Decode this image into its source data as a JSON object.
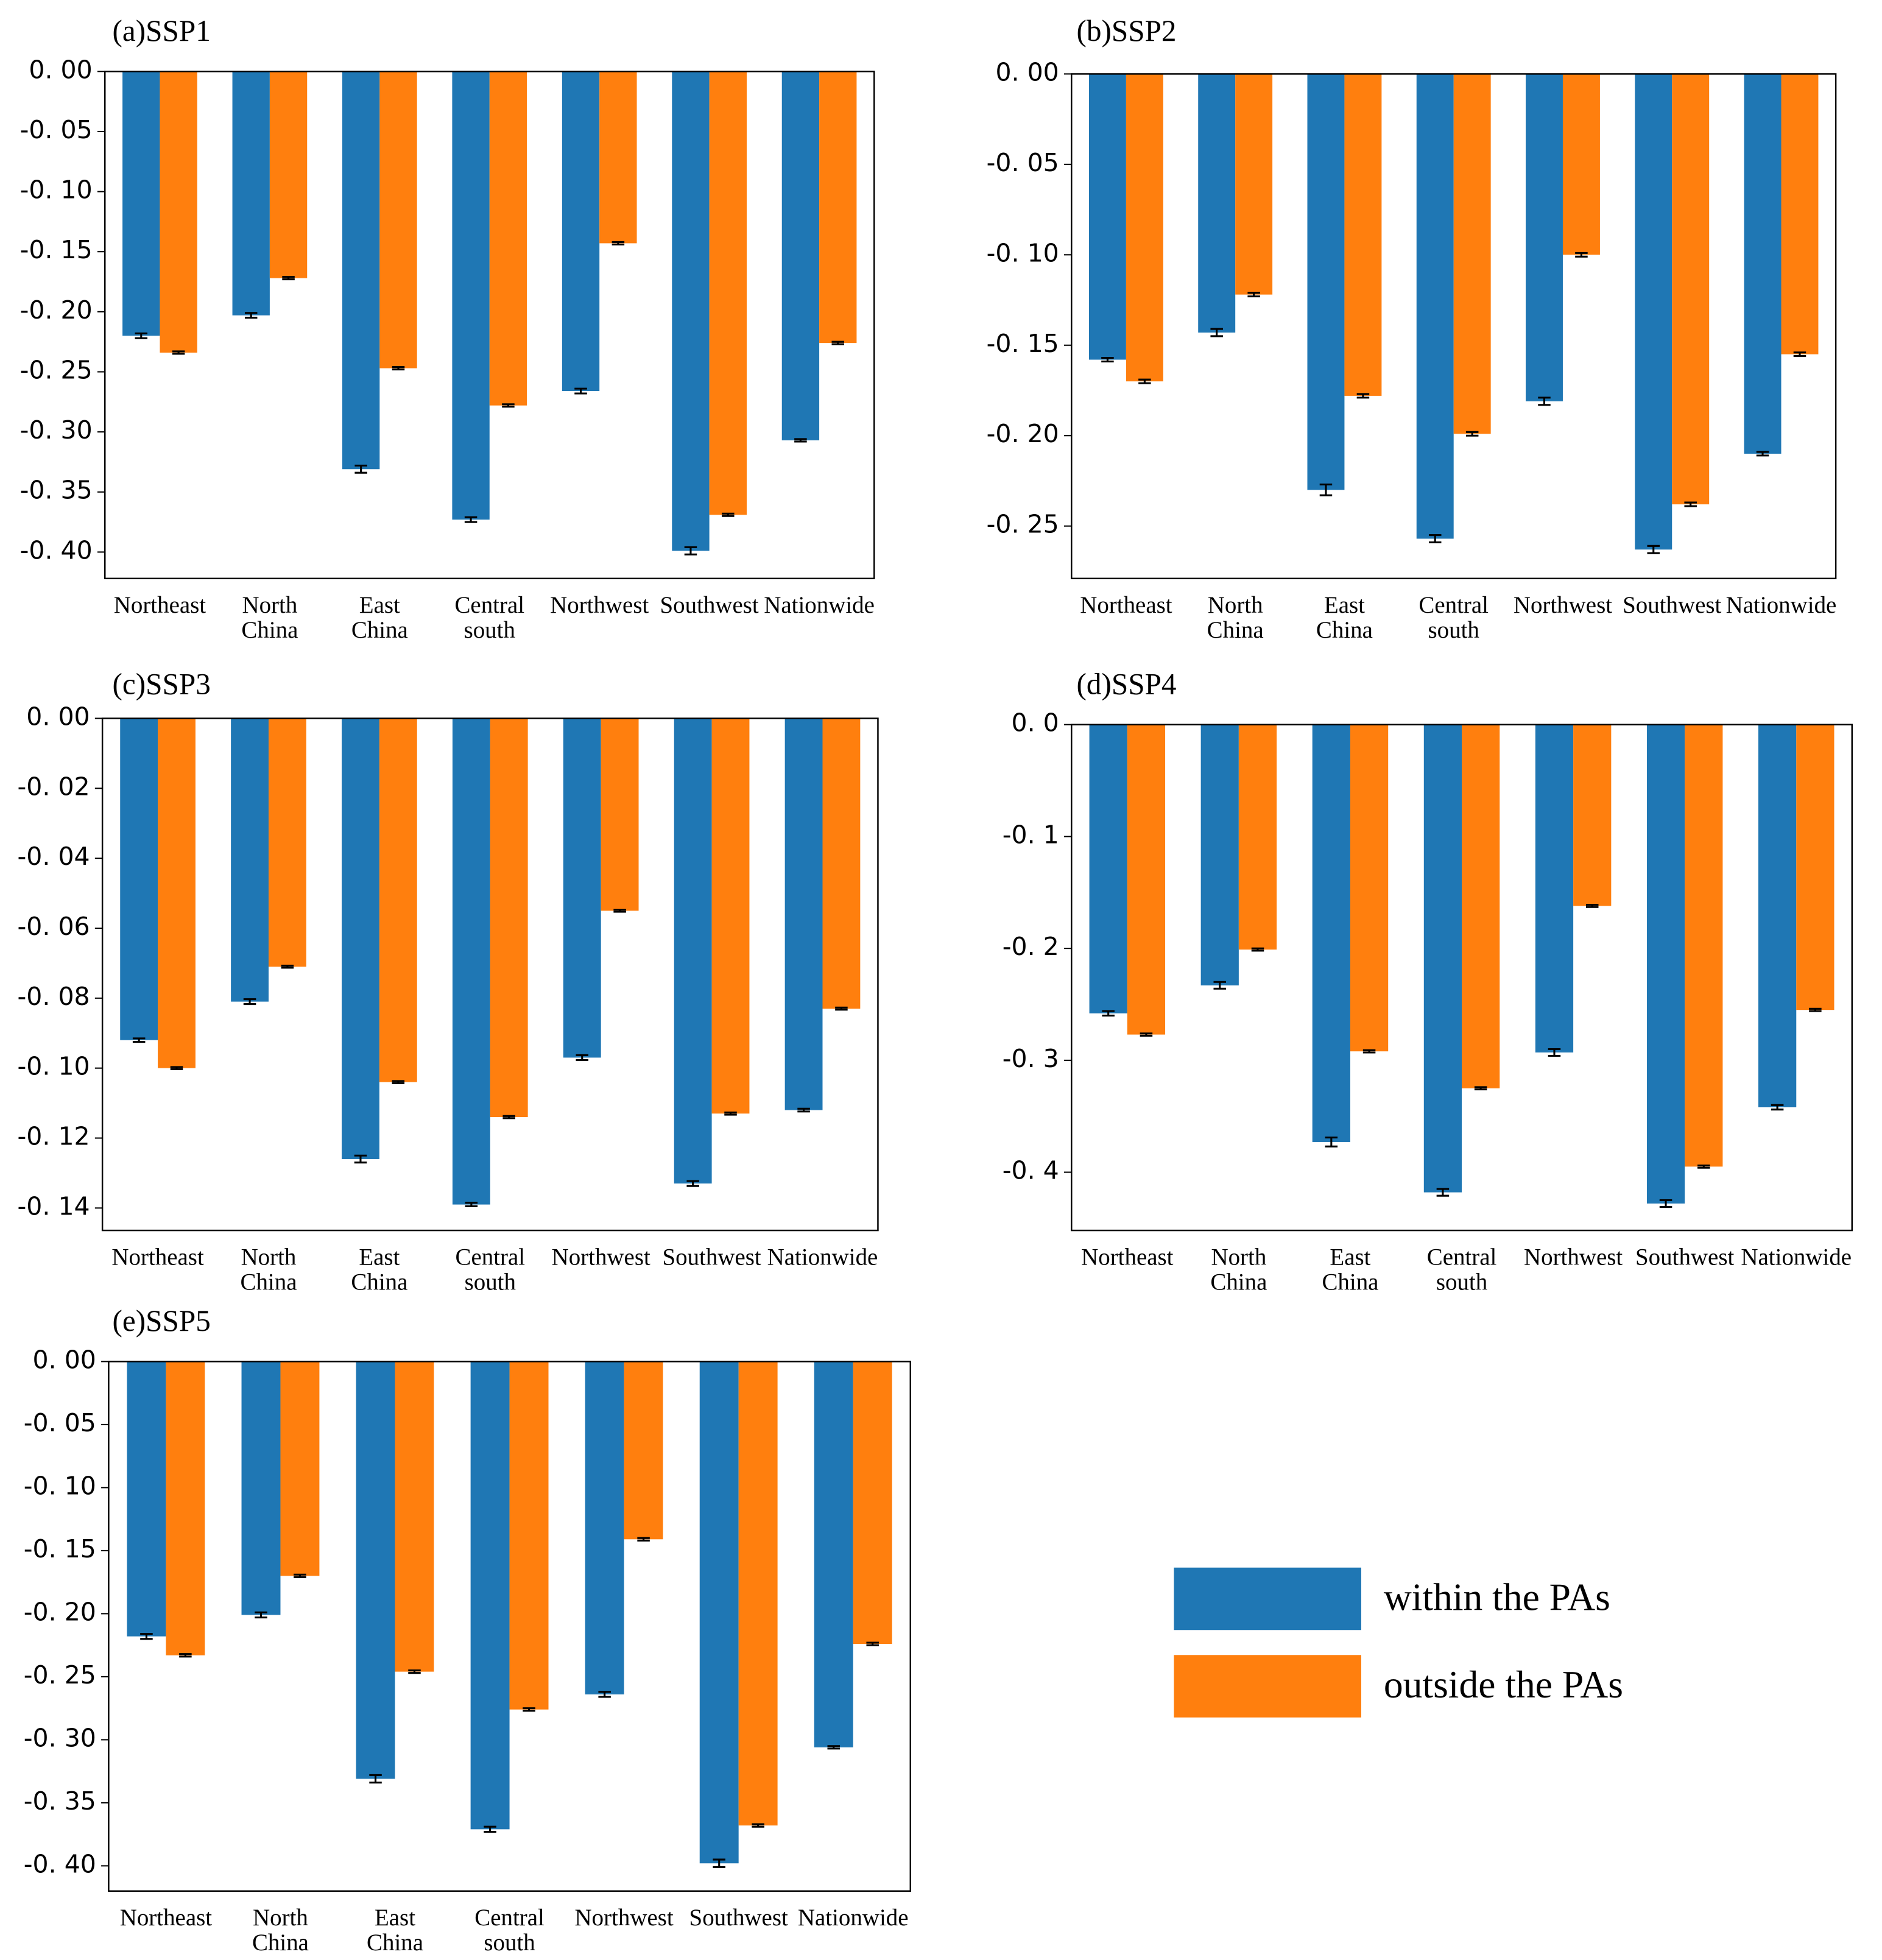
{
  "legend": [
    {
      "name": "within the PAs",
      "color": "#1f77b4"
    },
    {
      "name": "outside the PAs",
      "color": "#ff7f0e"
    }
  ],
  "chart_data": [
    {
      "type": "bar",
      "title": "(a)SSP1",
      "categories": [
        "Northeast",
        "North China",
        "East China",
        "Central south",
        "Northwest",
        "Southwest",
        "Nationwide"
      ],
      "series": [
        {
          "values": [
            -0.22,
            -0.203,
            -0.331,
            -0.373,
            -0.266,
            -0.399,
            -0.307
          ],
          "errors": [
            0.002,
            0.002,
            0.003,
            0.002,
            0.002,
            0.003,
            0.001
          ]
        },
        {
          "values": [
            -0.234,
            -0.172,
            -0.247,
            -0.278,
            -0.143,
            -0.369,
            -0.226
          ],
          "errors": [
            0.001,
            0.001,
            0.001,
            0.001,
            0.001,
            0.001,
            0.001
          ]
        }
      ],
      "ylim": [
        -0.422,
        0
      ],
      "yticks": [
        {
          "value": 0,
          "label": "0. 00"
        },
        {
          "value": -0.05,
          "label": "-0. 05"
        },
        {
          "value": -0.1,
          "label": "-0. 10"
        },
        {
          "value": -0.15,
          "label": "-0. 15"
        },
        {
          "value": -0.2,
          "label": "-0. 20"
        },
        {
          "value": -0.25,
          "label": "-0. 25"
        },
        {
          "value": -0.3,
          "label": "-0. 30"
        },
        {
          "value": -0.35,
          "label": "-0. 35"
        },
        {
          "value": -0.4,
          "label": "-0. 40"
        }
      ]
    },
    {
      "type": "bar",
      "title": "(b)SSP2",
      "categories": [
        "Northeast",
        "North China",
        "East China",
        "Central south",
        "Northwest",
        "Southwest",
        "Nationwide"
      ],
      "series": [
        {
          "values": [
            -0.158,
            -0.143,
            -0.23,
            -0.257,
            -0.181,
            -0.263,
            -0.21
          ],
          "errors": [
            0.001,
            0.002,
            0.003,
            0.002,
            0.002,
            0.002,
            0.001
          ]
        },
        {
          "values": [
            -0.17,
            -0.122,
            -0.178,
            -0.199,
            -0.1,
            -0.238,
            -0.155
          ],
          "errors": [
            0.001,
            0.001,
            0.001,
            0.001,
            0.001,
            0.001,
            0.001
          ]
        }
      ],
      "ylim": [
        -0.279,
        0
      ],
      "yticks": [
        {
          "value": 0,
          "label": "0. 00"
        },
        {
          "value": -0.05,
          "label": "-0. 05"
        },
        {
          "value": -0.1,
          "label": "-0. 10"
        },
        {
          "value": -0.15,
          "label": "-0. 15"
        },
        {
          "value": -0.2,
          "label": "-0. 20"
        },
        {
          "value": -0.25,
          "label": "-0. 25"
        }
      ]
    },
    {
      "type": "bar",
      "title": "(c)SSP3",
      "categories": [
        "Northeast",
        "North China",
        "East China",
        "Central south",
        "Northwest",
        "Southwest",
        "Nationwide"
      ],
      "series": [
        {
          "values": [
            -0.092,
            -0.081,
            -0.126,
            -0.139,
            -0.097,
            -0.133,
            -0.112
          ],
          "errors": [
            0.0005,
            0.0007,
            0.001,
            0.0005,
            0.0007,
            0.0007,
            0.0004
          ]
        },
        {
          "values": [
            -0.1,
            -0.071,
            -0.104,
            -0.114,
            -0.055,
            -0.113,
            -0.083
          ],
          "errors": [
            0.0003,
            0.0003,
            0.0003,
            0.0003,
            0.0003,
            0.0003,
            0.0003
          ]
        }
      ],
      "ylim": [
        -0.1464,
        0
      ],
      "yticks": [
        {
          "value": 0,
          "label": "0. 00"
        },
        {
          "value": -0.02,
          "label": "-0. 02"
        },
        {
          "value": -0.04,
          "label": "-0. 04"
        },
        {
          "value": -0.06,
          "label": "-0. 06"
        },
        {
          "value": -0.08,
          "label": "-0. 08"
        },
        {
          "value": -0.1,
          "label": "-0. 10"
        },
        {
          "value": -0.12,
          "label": "-0. 12"
        },
        {
          "value": -0.14,
          "label": "-0. 14"
        }
      ]
    },
    {
      "type": "bar",
      "title": "(d)SSP4",
      "categories": [
        "Northeast",
        "North China",
        "East China",
        "Central south",
        "Northwest",
        "Southwest",
        "Nationwide"
      ],
      "series": [
        {
          "values": [
            -0.258,
            -0.233,
            -0.373,
            -0.418,
            -0.293,
            -0.428,
            -0.342
          ],
          "errors": [
            0.002,
            0.003,
            0.004,
            0.003,
            0.003,
            0.003,
            0.002
          ]
        },
        {
          "values": [
            -0.277,
            -0.201,
            -0.292,
            -0.325,
            -0.162,
            -0.395,
            -0.255
          ],
          "errors": [
            0.001,
            0.001,
            0.001,
            0.001,
            0.001,
            0.001,
            0.001
          ]
        }
      ],
      "ylim": [
        -0.452,
        0
      ],
      "yticks": [
        {
          "value": 0,
          "label": "0. 0"
        },
        {
          "value": -0.1,
          "label": "-0. 1"
        },
        {
          "value": -0.2,
          "label": "-0. 2"
        },
        {
          "value": -0.3,
          "label": "-0. 3"
        },
        {
          "value": -0.4,
          "label": "-0. 4"
        }
      ]
    },
    {
      "type": "bar",
      "title": "(e)SSP5",
      "categories": [
        "Northeast",
        "North China",
        "East China",
        "Central south",
        "Northwest",
        "Southwest",
        "Nationwide"
      ],
      "series": [
        {
          "values": [
            -0.218,
            -0.201,
            -0.331,
            -0.371,
            -0.264,
            -0.398,
            -0.306
          ],
          "errors": [
            0.002,
            0.002,
            0.003,
            0.002,
            0.002,
            0.003,
            0.001
          ]
        },
        {
          "values": [
            -0.233,
            -0.17,
            -0.246,
            -0.276,
            -0.141,
            -0.368,
            -0.224
          ],
          "errors": [
            0.001,
            0.001,
            0.001,
            0.001,
            0.001,
            0.001,
            0.001
          ]
        }
      ],
      "ylim": [
        -0.42,
        0
      ],
      "yticks": [
        {
          "value": 0,
          "label": "0. 00"
        },
        {
          "value": -0.05,
          "label": "-0. 05"
        },
        {
          "value": -0.1,
          "label": "-0. 10"
        },
        {
          "value": -0.15,
          "label": "-0. 15"
        },
        {
          "value": -0.2,
          "label": "-0. 20"
        },
        {
          "value": -0.25,
          "label": "-0. 25"
        },
        {
          "value": -0.3,
          "label": "-0. 30"
        },
        {
          "value": -0.35,
          "label": "-0. 35"
        },
        {
          "value": -0.4,
          "label": "-0. 40"
        }
      ]
    }
  ]
}
